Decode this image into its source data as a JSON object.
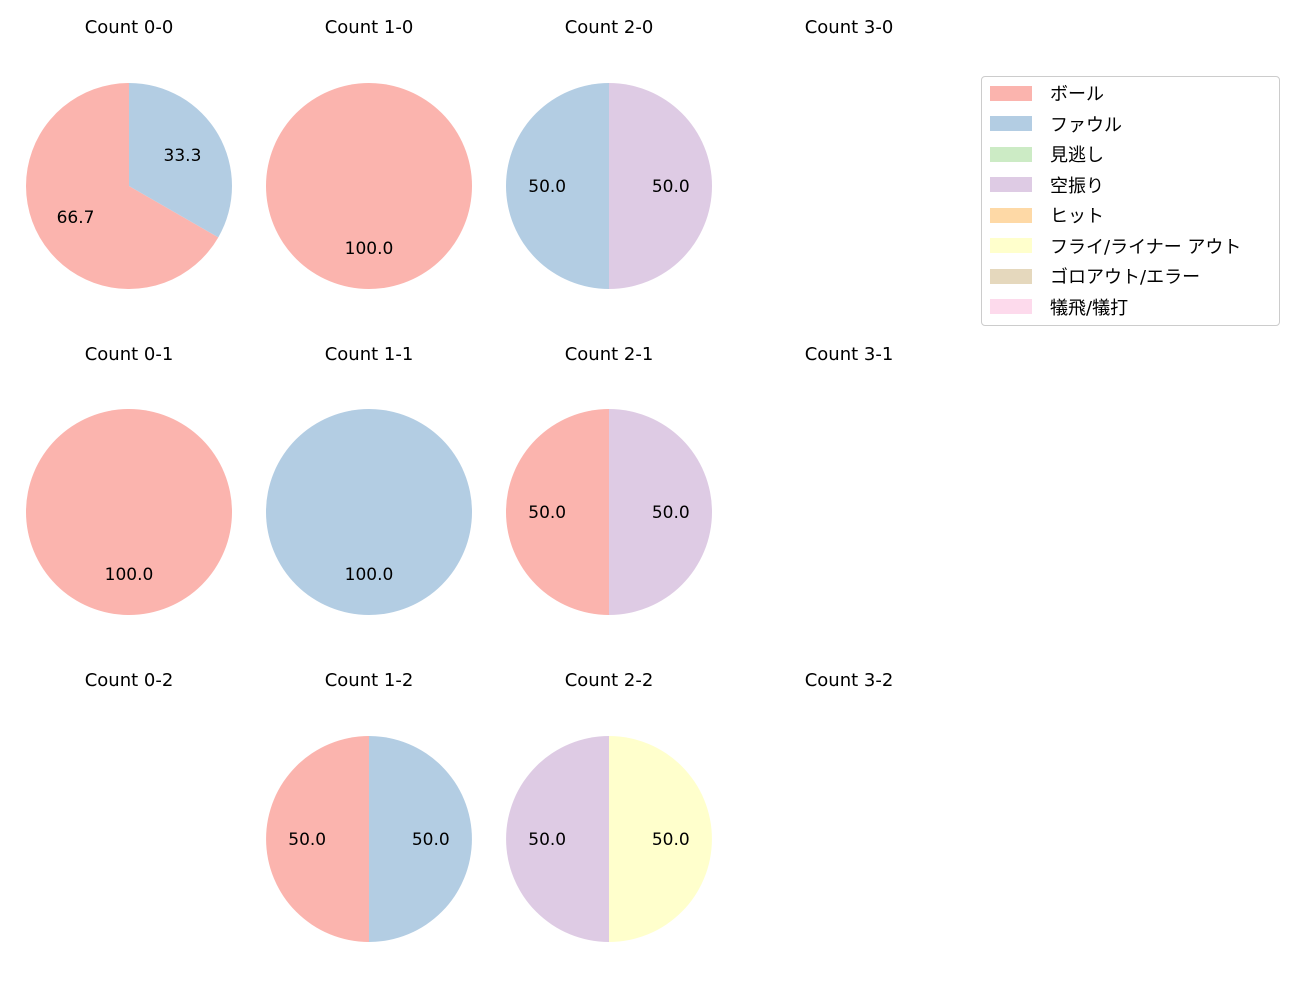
{
  "legend": {
    "items": [
      {
        "label": "ボール",
        "color": "#fbb4ae"
      },
      {
        "label": "ファウル",
        "color": "#b3cde3"
      },
      {
        "label": "見逃し",
        "color": "#ccebc5"
      },
      {
        "label": "空振り",
        "color": "#decbe4"
      },
      {
        "label": "ヒット",
        "color": "#fed9a6"
      },
      {
        "label": "フライ/ライナー アウト",
        "color": "#ffffcc"
      },
      {
        "label": "ゴロアウト/エラー",
        "color": "#e5d8bd"
      },
      {
        "label": "犠飛/犠打",
        "color": "#fddaec"
      }
    ]
  },
  "titles": {
    "c00": "Count 0-0",
    "c10": "Count 1-0",
    "c20": "Count 2-0",
    "c30": "Count 3-0",
    "c01": "Count 0-1",
    "c11": "Count 1-1",
    "c21": "Count 2-1",
    "c31": "Count 3-1",
    "c02": "Count 0-2",
    "c12": "Count 1-2",
    "c22": "Count 2-2",
    "c32": "Count 3-2"
  },
  "chart_data": {
    "type": "pie",
    "title": "",
    "legend_position": "upper right",
    "categories": [
      "ボール",
      "ファウル",
      "見逃し",
      "空振り",
      "ヒット",
      "フライ/ライナー アウト",
      "ゴロアウト/エラー",
      "犠飛/犠打"
    ],
    "colors": [
      "#fbb4ae",
      "#b3cde3",
      "#ccebc5",
      "#decbe4",
      "#fed9a6",
      "#ffffcc",
      "#e5d8bd",
      "#fddaec"
    ],
    "subplots": [
      {
        "title": "Count 0-0",
        "slices": [
          {
            "label": "ボール",
            "value": 66.7
          },
          {
            "label": "ファウル",
            "value": 33.3
          }
        ]
      },
      {
        "title": "Count 1-0",
        "slices": [
          {
            "label": "ボール",
            "value": 100.0
          }
        ]
      },
      {
        "title": "Count 2-0",
        "slices": [
          {
            "label": "ファウル",
            "value": 50.0
          },
          {
            "label": "空振り",
            "value": 50.0
          }
        ]
      },
      {
        "title": "Count 3-0",
        "slices": []
      },
      {
        "title": "Count 0-1",
        "slices": [
          {
            "label": "ボール",
            "value": 100.0
          }
        ]
      },
      {
        "title": "Count 1-1",
        "slices": [
          {
            "label": "ファウル",
            "value": 100.0
          }
        ]
      },
      {
        "title": "Count 2-1",
        "slices": [
          {
            "label": "ボール",
            "value": 50.0
          },
          {
            "label": "空振り",
            "value": 50.0
          }
        ]
      },
      {
        "title": "Count 3-1",
        "slices": []
      },
      {
        "title": "Count 0-2",
        "slices": []
      },
      {
        "title": "Count 1-2",
        "slices": [
          {
            "label": "ボール",
            "value": 50.0
          },
          {
            "label": "ファウル",
            "value": 50.0
          }
        ]
      },
      {
        "title": "Count 2-2",
        "slices": [
          {
            "label": "空振り",
            "value": 50.0
          },
          {
            "label": "フライ/ライナー アウト",
            "value": 50.0
          }
        ]
      },
      {
        "title": "Count 3-2",
        "slices": []
      }
    ]
  }
}
